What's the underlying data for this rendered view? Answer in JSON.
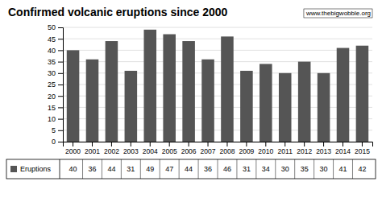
{
  "chart_data": {
    "type": "bar",
    "title": "Confirmed volcanic eruptions since 2000",
    "categories": [
      "2000",
      "2001",
      "2002",
      "2003",
      "2004",
      "2005",
      "2006",
      "2007",
      "2008",
      "2009",
      "2010",
      "2011",
      "2012",
      "2013",
      "2014",
      "2015"
    ],
    "series": [
      {
        "name": "Eruptions",
        "color": "#555555",
        "values": [
          40,
          36,
          44,
          31,
          49,
          47,
          44,
          36,
          46,
          31,
          34,
          30,
          35,
          30,
          41,
          42
        ]
      }
    ],
    "ylim": [
      0,
      50
    ],
    "yticks": [
      0,
      5,
      10,
      15,
      20,
      25,
      30,
      35,
      40,
      45,
      50
    ],
    "grid": true,
    "data_labels": true,
    "annotations": [
      "www.thebigwobble.org"
    ]
  }
}
